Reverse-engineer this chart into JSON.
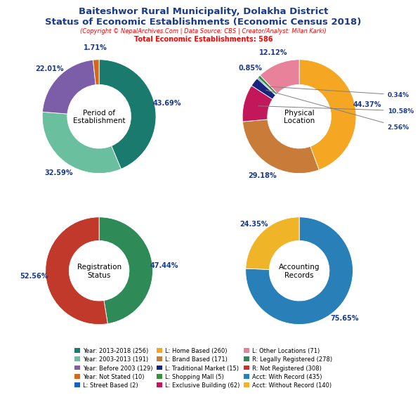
{
  "title_line1": "Baiteshwor Rural Municipality, Dolakha District",
  "title_line2": "Status of Economic Establishments (Economic Census 2018)",
  "subtitle": "(Copyright © NepalArchives.Com | Data Source: CBS | Creator/Analyst: Milan Karki)",
  "total_line": "Total Economic Establishments: 586",
  "pie1_label": "Period of\nEstablishment",
  "pie1_values": [
    256,
    191,
    129,
    10
  ],
  "pie1_colors": [
    "#1a7a6e",
    "#6abf9e",
    "#7b5ea7",
    "#d2691e"
  ],
  "pie1_pcts": [
    "43.69%",
    "32.59%",
    "22.01%",
    "1.71%"
  ],
  "pie2_label": "Physical\nLocation",
  "pie2_values": [
    260,
    171,
    62,
    15,
    2,
    5,
    71
  ],
  "pie2_colors": [
    "#f5a623",
    "#c97b3a",
    "#c2185b",
    "#1a237e",
    "#1565c0",
    "#388e3c",
    "#e8829a"
  ],
  "pie2_pcts": [
    "44.37%",
    "29.18%",
    "10.58%",
    "2.56%",
    "0.34%",
    "0.85%",
    "12.12%"
  ],
  "pie3_label": "Registration\nStatus",
  "pie3_values": [
    278,
    308
  ],
  "pie3_colors": [
    "#2e8b57",
    "#c0392b"
  ],
  "pie3_pcts": [
    "47.44%",
    "52.56%"
  ],
  "pie4_label": "Accounting\nRecords",
  "pie4_values": [
    435,
    140
  ],
  "pie4_colors": [
    "#2980b9",
    "#f0b429"
  ],
  "pie4_pcts": [
    "75.65%",
    "24.35%"
  ],
  "legend_items": [
    {
      "label": "Year: 2013-2018 (256)",
      "color": "#1a7a6e"
    },
    {
      "label": "Year: 2003-2013 (191)",
      "color": "#6abf9e"
    },
    {
      "label": "Year: Before 2003 (129)",
      "color": "#7b5ea7"
    },
    {
      "label": "Year: Not Stated (10)",
      "color": "#d2691e"
    },
    {
      "label": "L: Street Based (2)",
      "color": "#1565c0"
    },
    {
      "label": "L: Home Based (260)",
      "color": "#f5a623"
    },
    {
      "label": "L: Brand Based (171)",
      "color": "#c97b3a"
    },
    {
      "label": "L: Traditional Market (15)",
      "color": "#1a237e"
    },
    {
      "label": "L: Shopping Mall (5)",
      "color": "#388e3c"
    },
    {
      "label": "L: Exclusive Building (62)",
      "color": "#c2185b"
    },
    {
      "label": "L: Other Locations (71)",
      "color": "#e8829a"
    },
    {
      "label": "R: Legally Registered (278)",
      "color": "#2e8b57"
    },
    {
      "label": "R: Not Registered (308)",
      "color": "#c0392b"
    },
    {
      "label": "Acct: With Record (435)",
      "color": "#2980b9"
    },
    {
      "label": "Acct: Without Record (140)",
      "color": "#f0b429"
    }
  ]
}
